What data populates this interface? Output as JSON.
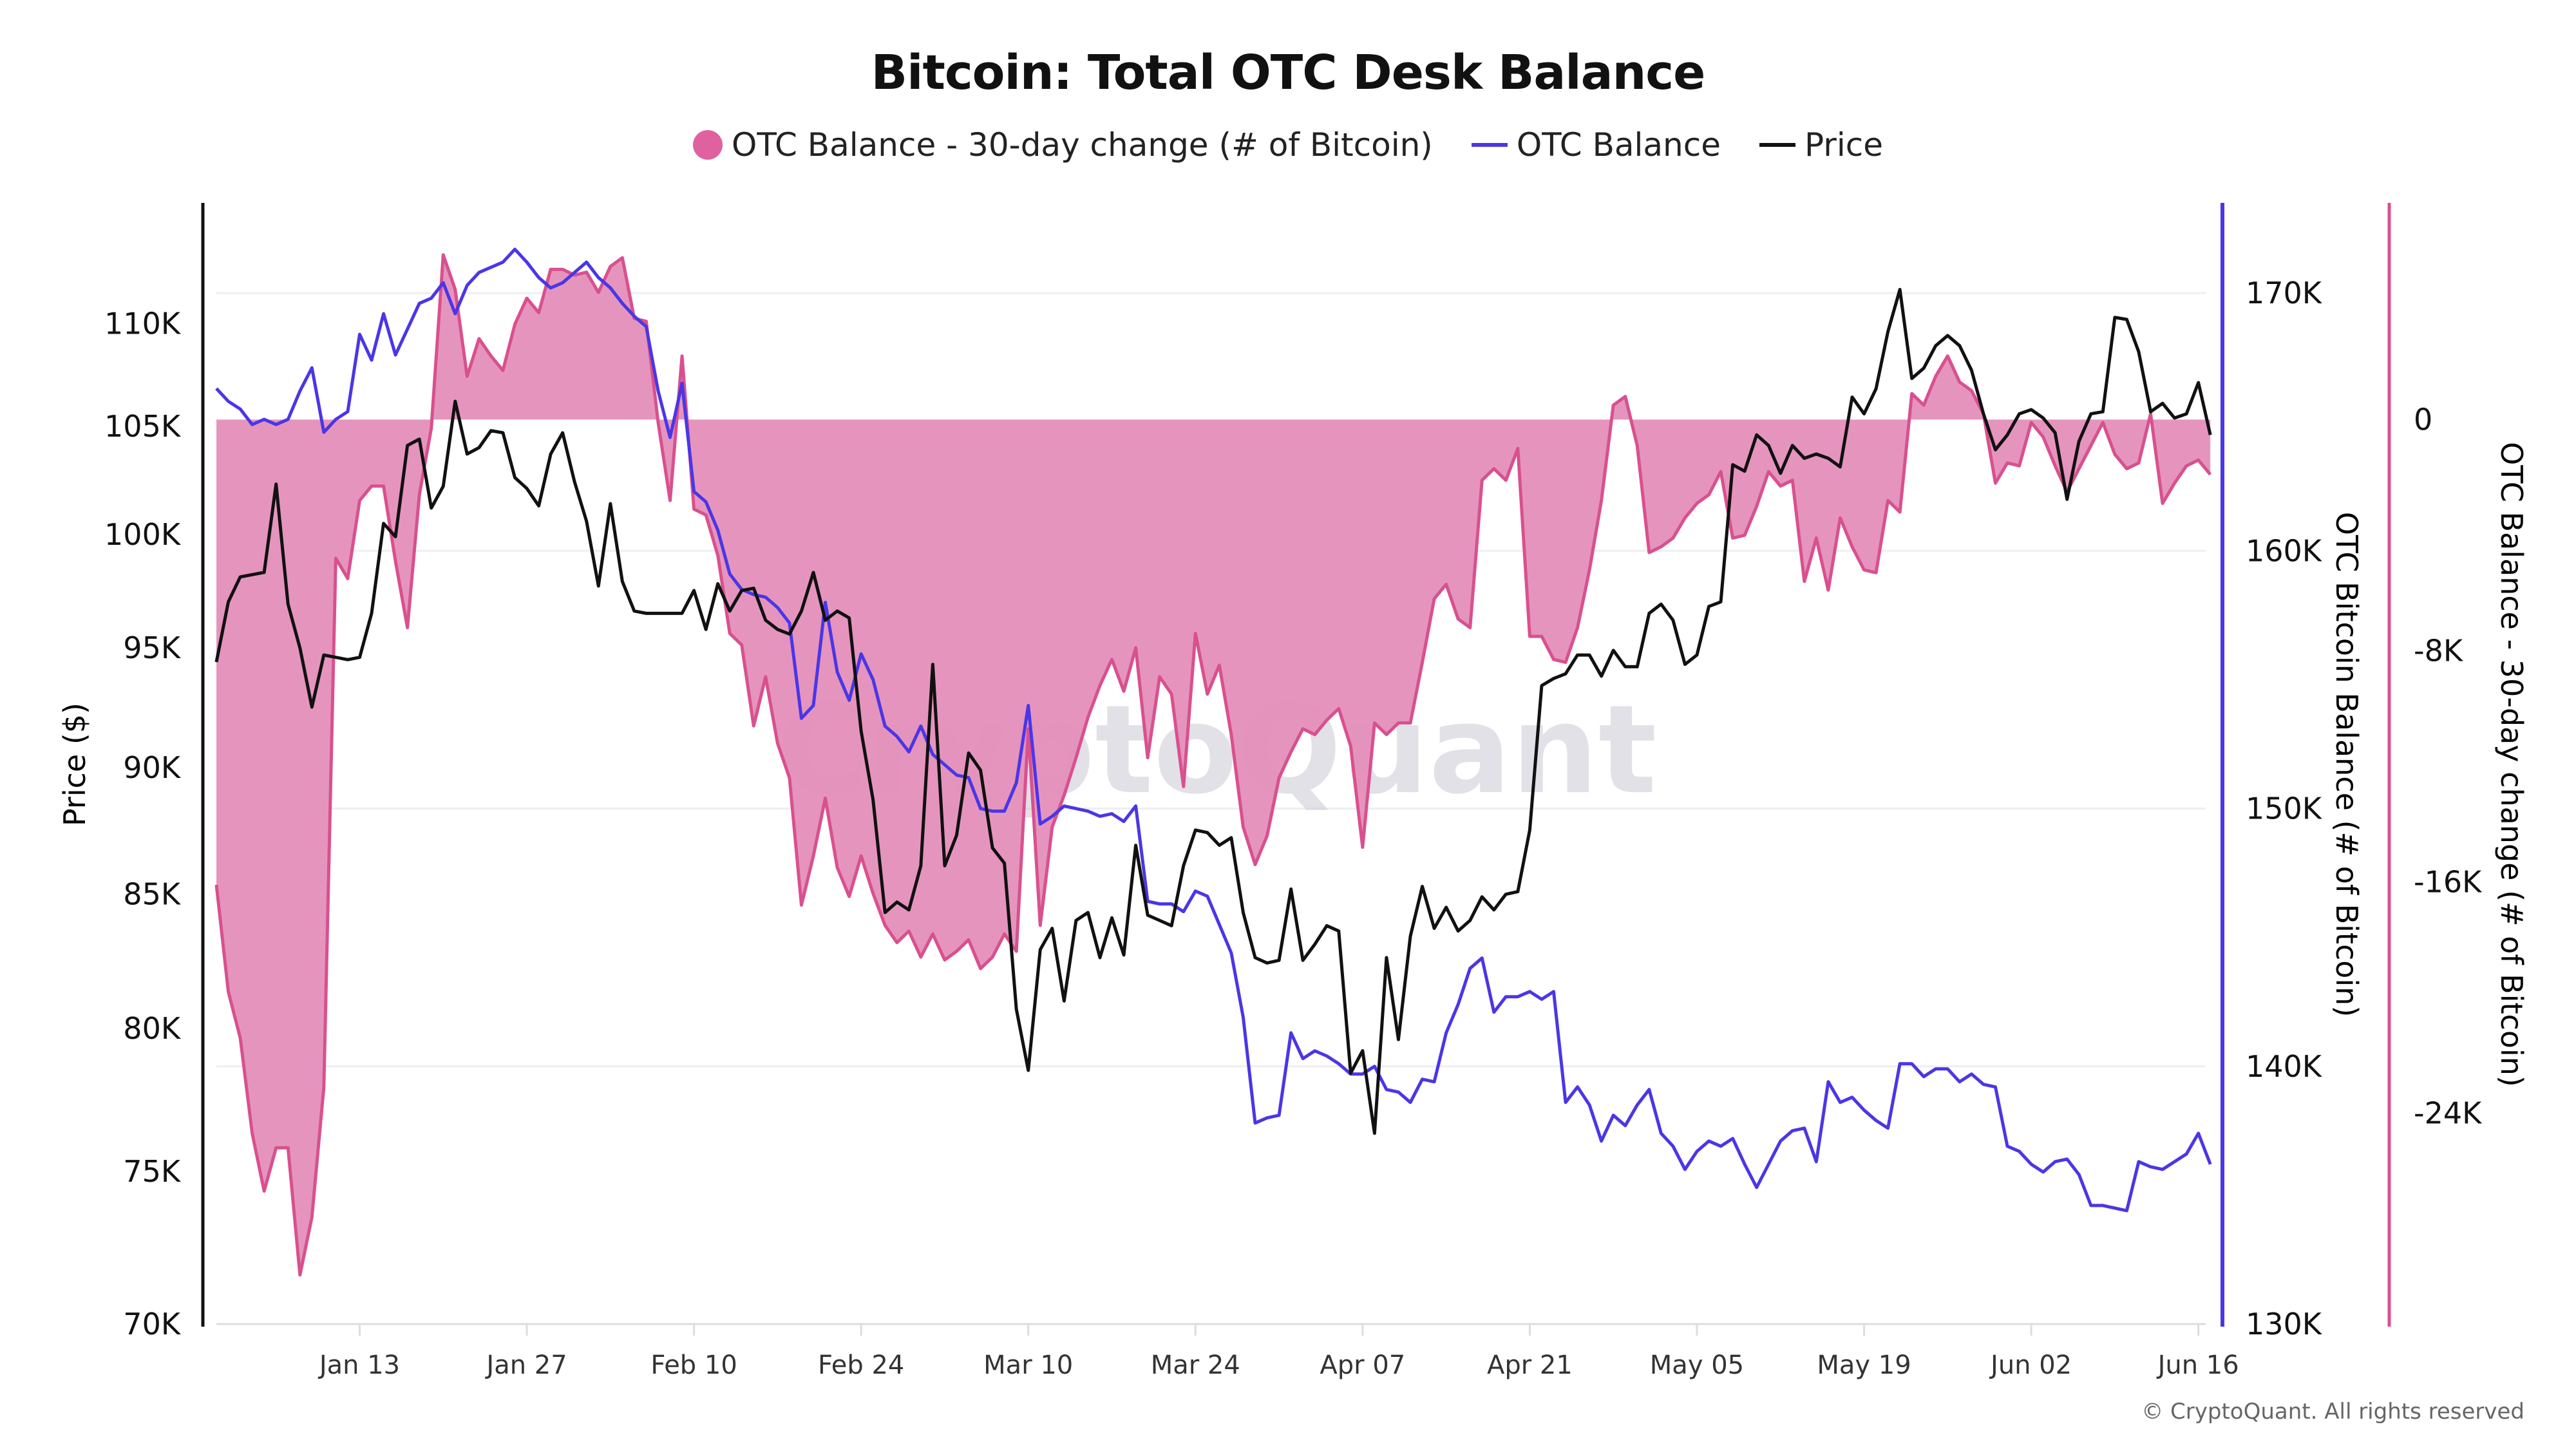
{
  "chart_data": {
    "type": "line",
    "title": "Bitcoin: Total OTC Desk Balance",
    "legend_placement": "top",
    "grid": true,
    "watermark": "CryptoQuant",
    "copyright": "© CryptoQuant. All rights reserved",
    "x_axis": {
      "ticks": [
        "Jan 13",
        "Jan 27",
        "Feb 10",
        "Feb 24",
        "Mar 10",
        "Mar 24",
        "Apr 07",
        "Apr 21",
        "May 05",
        "May 19",
        "Jun 02",
        "Jun 16"
      ],
      "range": [
        "Jan 01",
        "Jun 17"
      ]
    },
    "y_axes": {
      "price": {
        "label": "Price ($)",
        "scale": "log",
        "ticks": [
          "70K",
          "75K",
          "80K",
          "85K",
          "90K",
          "95K",
          "100K",
          "105K",
          "110K"
        ],
        "tick_values": [
          70000,
          75000,
          80000,
          85000,
          90000,
          95000,
          100000,
          105000,
          110000
        ],
        "range": [
          70000,
          112500
        ]
      },
      "balance": {
        "label": "OTC Bitcoin Balance (# of Bitcoin)",
        "scale": "linear",
        "ticks": [
          "130K",
          "140K",
          "150K",
          "160K",
          "170K"
        ],
        "tick_values": [
          130000,
          140000,
          150000,
          160000,
          170000
        ],
        "range": [
          130000,
          173500
        ],
        "color": "#4b36e6"
      },
      "change": {
        "label": "OTC Balance - 30-day change (# of Bitcoin)",
        "scale": "linear",
        "ticks": [
          "0",
          "-8K",
          "-16K",
          "-24K"
        ],
        "tick_values": [
          0,
          -8000,
          -16000,
          -24000
        ],
        "range": [
          -31300,
          7500
        ],
        "color": "#d9508e"
      }
    },
    "series": [
      {
        "name": "OTC Balance - 30-day change (# of Bitcoin)",
        "type": "area",
        "axis": "change",
        "unit": "K BTC",
        "color": "#d9508e",
        "fill": "#e48fb9",
        "values_by_month": {
          "Jan": [
            -16.1,
            -19.8,
            -21.4,
            -24.7,
            -26.7,
            -25.2,
            -25.2,
            -29.6,
            -27.6,
            -23.1,
            -4.8,
            -5.5,
            -2.8,
            -2.3,
            -2.3,
            -4.9,
            -7.2,
            -2.6,
            -0.3,
            5.7,
            4.5,
            1.5,
            2.8,
            2.2,
            1.7,
            3.3,
            4.2,
            3.7,
            5.2,
            5.2,
            5.0
          ],
          "Feb": [
            5.1,
            4.4,
            5.3,
            5.6,
            3.5,
            3.4,
            -0.1,
            -2.8,
            2.2,
            -3.1,
            -3.3,
            -4.7,
            -7.4,
            -7.8,
            -10.6,
            -8.9,
            -11.2,
            -12.4,
            -16.8,
            -15.1,
            -13.1,
            -15.5,
            -16.5,
            -15.1,
            -16.4,
            -17.5,
            -18.1,
            -17.7
          ],
          "Mar": [
            -18.6,
            -17.8,
            -18.7,
            -18.4,
            -18.0,
            -19.0,
            -18.6,
            -17.8,
            -18.4,
            -10.7,
            -17.5,
            -14.1,
            -13.0,
            -11.7,
            -10.3,
            -9.2,
            -8.3,
            -9.4,
            -7.9,
            -11.7,
            -8.9,
            -9.5,
            -12.7,
            -7.4,
            -9.5,
            -8.5,
            -10.9,
            -14.1,
            -15.4,
            -14.4,
            -12.4
          ],
          "Apr": [
            -11.5,
            -10.7,
            -10.9,
            -10.4,
            -10.0,
            -11.3,
            -14.8,
            -10.5,
            -10.9,
            -10.5,
            -10.5,
            -8.4,
            -6.2,
            -5.7,
            -6.9,
            -7.2,
            -2.1,
            -1.7,
            -2.1,
            -1.0,
            -7.5,
            -7.5,
            -8.3,
            -8.4,
            -7.2,
            -5.2,
            -2.8,
            0.5,
            0.8,
            -0.9
          ],
          "May": [
            -4.6,
            -4.4,
            -4.1,
            -3.4,
            -2.9,
            -2.6,
            -1.8,
            -4.1,
            -4.0,
            -3.0,
            -1.8,
            -2.3,
            -2.1,
            -5.6,
            -4.1,
            -5.9,
            -3.4,
            -4.4,
            -5.2,
            -5.3,
            -2.8,
            -3.2,
            0.9,
            0.5,
            1.5,
            2.2,
            1.3,
            1.0,
            0.2,
            -2.2,
            -1.5
          ],
          "Jun": [
            -1.6,
            -0.1,
            -0.6,
            -1.6,
            -2.5,
            -1.7,
            -0.9,
            -0.1,
            -1.2,
            -1.7,
            -1.5,
            0.2,
            -2.9,
            -2.2,
            -1.6,
            -1.4,
            -1.9
          ]
        }
      },
      {
        "name": "OTC Balance",
        "type": "line",
        "axis": "balance",
        "unit": "K BTC",
        "color": "#4b36e6",
        "values_by_month": {
          "Jan": [
            166.3,
            165.8,
            165.5,
            164.9,
            165.1,
            164.9,
            165.1,
            166.2,
            167.1,
            164.6,
            165.1,
            165.4,
            168.4,
            167.4,
            169.2,
            167.6,
            168.6,
            169.6,
            169.8,
            170.4,
            169.2,
            170.3,
            170.8,
            171.0,
            171.2,
            171.7,
            171.2,
            170.6,
            170.2,
            170.4,
            170.8
          ],
          "Feb": [
            171.2,
            170.6,
            170.2,
            169.6,
            169.1,
            168.7,
            166.2,
            164.4,
            166.5,
            162.3,
            161.9,
            160.8,
            159.1,
            158.5,
            158.3,
            158.2,
            157.8,
            157.2,
            153.5,
            154.0,
            158.0,
            155.3,
            154.2,
            156.0,
            155.0,
            153.2,
            152.8,
            152.2
          ],
          "Mar": [
            153.2,
            152.1,
            151.7,
            151.3,
            151.2,
            150.0,
            149.9,
            149.9,
            151.0,
            154.0,
            149.4,
            149.7,
            150.1,
            150.0,
            149.9,
            149.7,
            149.8,
            149.5,
            150.1,
            146.4,
            146.3,
            146.3,
            146.0,
            146.8,
            146.6,
            145.5,
            144.4,
            141.9,
            137.8,
            138.0,
            138.1
          ],
          "Apr": [
            141.3,
            140.3,
            140.6,
            140.4,
            140.1,
            139.7,
            139.7,
            140.0,
            139.1,
            139.0,
            138.6,
            139.5,
            139.4,
            141.3,
            142.4,
            143.8,
            144.2,
            142.1,
            142.7,
            142.7,
            142.9,
            142.6,
            142.9,
            138.6,
            139.2,
            138.5,
            137.1,
            138.1,
            137.7,
            138.5
          ],
          "May": [
            139.1,
            137.4,
            136.9,
            136.0,
            136.7,
            137.1,
            136.9,
            137.2,
            136.2,
            135.3,
            136.2,
            137.1,
            137.5,
            137.6,
            136.3,
            139.4,
            138.6,
            138.8,
            138.3,
            137.9,
            137.6,
            140.1,
            140.1,
            139.6,
            139.9,
            139.9,
            139.4,
            139.7,
            139.3,
            139.2,
            136.9
          ],
          "Jun": [
            136.7,
            136.2,
            135.9,
            136.3,
            136.4,
            135.8,
            134.6,
            134.6,
            134.5,
            134.4,
            136.3,
            136.1,
            136.0,
            136.3,
            136.6,
            137.4,
            136.2
          ]
        }
      },
      {
        "name": "Price",
        "type": "line",
        "axis": "price",
        "unit": "K USD",
        "color": "#111111",
        "values_by_month": {
          "Jan": [
            94.4,
            97.0,
            98.1,
            98.2,
            98.3,
            102.3,
            96.9,
            95.0,
            92.5,
            94.7,
            94.6,
            94.5,
            94.6,
            96.5,
            100.5,
            99.9,
            104.1,
            104.4,
            101.2,
            102.2,
            106.2,
            103.7,
            104.0,
            104.8,
            104.7,
            102.6,
            102.1,
            101.3,
            103.7,
            104.7,
            102.4
          ],
          "Feb": [
            100.6,
            97.7,
            101.4,
            97.9,
            96.6,
            96.5,
            96.5,
            96.5,
            96.5,
            97.5,
            95.8,
            97.8,
            96.6,
            97.5,
            97.6,
            96.2,
            95.8,
            95.6,
            96.6,
            98.3,
            96.2,
            96.6,
            96.3,
            91.5,
            88.7,
            84.3,
            84.7,
            84.4
          ],
          "Mar": [
            86.1,
            94.3,
            86.1,
            87.3,
            90.6,
            89.9,
            86.8,
            86.2,
            80.7,
            78.5,
            82.9,
            83.7,
            81.0,
            84.0,
            84.3,
            82.6,
            84.1,
            82.7,
            86.9,
            84.2,
            84.0,
            83.8,
            86.1,
            87.5,
            87.4,
            86.9,
            87.2,
            84.3,
            82.6,
            82.4,
            82.5
          ],
          "Apr": [
            85.2,
            82.5,
            83.1,
            83.8,
            83.6,
            78.4,
            79.2,
            76.3,
            82.6,
            79.6,
            83.4,
            85.3,
            83.7,
            84.5,
            83.6,
            84.0,
            84.9,
            84.4,
            85.0,
            85.1,
            87.5,
            93.4,
            93.7,
            93.9,
            94.7,
            94.7,
            93.8,
            94.9,
            94.2,
            94.2
          ],
          "May": [
            96.5,
            96.9,
            96.2,
            94.3,
            94.7,
            96.8,
            97.0,
            103.2,
            102.9,
            104.6,
            104.1,
            102.8,
            104.1,
            103.5,
            103.7,
            103.5,
            103.1,
            106.4,
            105.6,
            106.8,
            109.6,
            111.7,
            107.3,
            107.8,
            108.9,
            109.4,
            108.9,
            107.7,
            105.6,
            103.9,
            104.6
          ],
          "Jun": [
            105.6,
            105.8,
            105.4,
            104.7,
            101.6,
            104.3,
            105.6,
            105.7,
            110.3,
            110.2,
            108.6,
            105.7,
            106.1,
            105.4,
            105.6,
            107.1,
            104.6
          ]
        }
      }
    ]
  }
}
